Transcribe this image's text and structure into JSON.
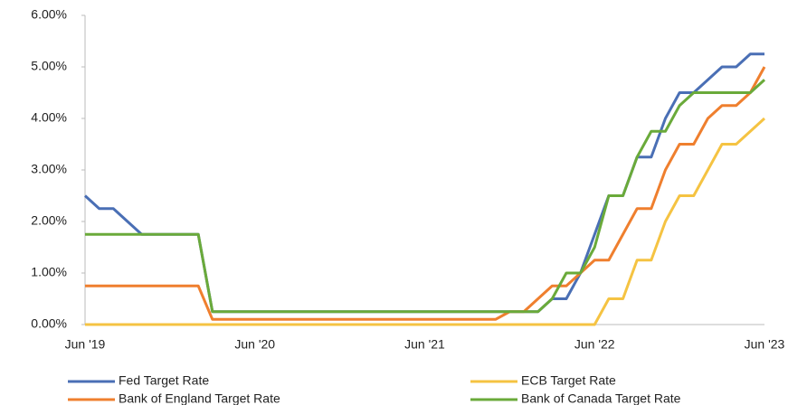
{
  "chart_data": {
    "type": "line",
    "categories": [
      "Jun '19",
      null,
      null,
      null,
      null,
      null,
      null,
      null,
      null,
      null,
      null,
      null,
      "Jun '20",
      null,
      null,
      null,
      null,
      null,
      null,
      null,
      null,
      null,
      null,
      null,
      "Jun '21",
      null,
      null,
      null,
      null,
      null,
      null,
      null,
      null,
      null,
      null,
      null,
      "Jun '22",
      null,
      null,
      null,
      null,
      null,
      null,
      null,
      null,
      null,
      null,
      null,
      "Jun '23"
    ],
    "series": [
      {
        "name": "Fed Target Rate",
        "color": "#4a6fb5",
        "values": [
          2.5,
          2.25,
          2.25,
          2.0,
          1.75,
          1.75,
          1.75,
          1.75,
          1.75,
          0.25,
          0.25,
          0.25,
          0.25,
          0.25,
          0.25,
          0.25,
          0.25,
          0.25,
          0.25,
          0.25,
          0.25,
          0.25,
          0.25,
          0.25,
          0.25,
          0.25,
          0.25,
          0.25,
          0.25,
          0.25,
          0.25,
          0.25,
          0.25,
          0.5,
          0.5,
          1.0,
          1.75,
          2.5,
          2.5,
          3.25,
          3.25,
          4.0,
          4.5,
          4.5,
          4.75,
          5.0,
          5.0,
          5.25,
          5.25
        ]
      },
      {
        "name": "ECB Target Rate",
        "color": "#f5c342",
        "values": [
          0,
          0,
          0,
          0,
          0,
          0,
          0,
          0,
          0,
          0,
          0,
          0,
          0,
          0,
          0,
          0,
          0,
          0,
          0,
          0,
          0,
          0,
          0,
          0,
          0,
          0,
          0,
          0,
          0,
          0,
          0,
          0,
          0,
          0,
          0,
          0,
          0,
          0.5,
          0.5,
          1.25,
          1.25,
          2.0,
          2.5,
          2.5,
          3.0,
          3.5,
          3.5,
          3.75,
          4.0
        ]
      },
      {
        "name": "Bank of England Target Rate",
        "color": "#ef7f2e",
        "values": [
          0.75,
          0.75,
          0.75,
          0.75,
          0.75,
          0.75,
          0.75,
          0.75,
          0.75,
          0.1,
          0.1,
          0.1,
          0.1,
          0.1,
          0.1,
          0.1,
          0.1,
          0.1,
          0.1,
          0.1,
          0.1,
          0.1,
          0.1,
          0.1,
          0.1,
          0.1,
          0.1,
          0.1,
          0.1,
          0.1,
          0.25,
          0.25,
          0.5,
          0.75,
          0.75,
          1.0,
          1.25,
          1.25,
          1.75,
          2.25,
          2.25,
          3.0,
          3.5,
          3.5,
          4.0,
          4.25,
          4.25,
          4.5,
          5.0
        ]
      },
      {
        "name": "Bank of Canada Target Rate",
        "color": "#6aaa3a",
        "values": [
          1.75,
          1.75,
          1.75,
          1.75,
          1.75,
          1.75,
          1.75,
          1.75,
          1.75,
          0.25,
          0.25,
          0.25,
          0.25,
          0.25,
          0.25,
          0.25,
          0.25,
          0.25,
          0.25,
          0.25,
          0.25,
          0.25,
          0.25,
          0.25,
          0.25,
          0.25,
          0.25,
          0.25,
          0.25,
          0.25,
          0.25,
          0.25,
          0.25,
          0.5,
          1.0,
          1.0,
          1.5,
          2.5,
          2.5,
          3.25,
          3.75,
          3.75,
          4.25,
          4.5,
          4.5,
          4.5,
          4.5,
          4.5,
          4.75
        ]
      }
    ],
    "ylim": [
      0,
      6
    ],
    "yticks": [
      {
        "value": 0,
        "label": "0.00%"
      },
      {
        "value": 1,
        "label": "1.00%"
      },
      {
        "value": 2,
        "label": "2.00%"
      },
      {
        "value": 3,
        "label": "3.00%"
      },
      {
        "value": 4,
        "label": "4.00%"
      },
      {
        "value": 5,
        "label": "5.00%"
      },
      {
        "value": 6,
        "label": "6.00%"
      }
    ],
    "legend": "bottom"
  }
}
